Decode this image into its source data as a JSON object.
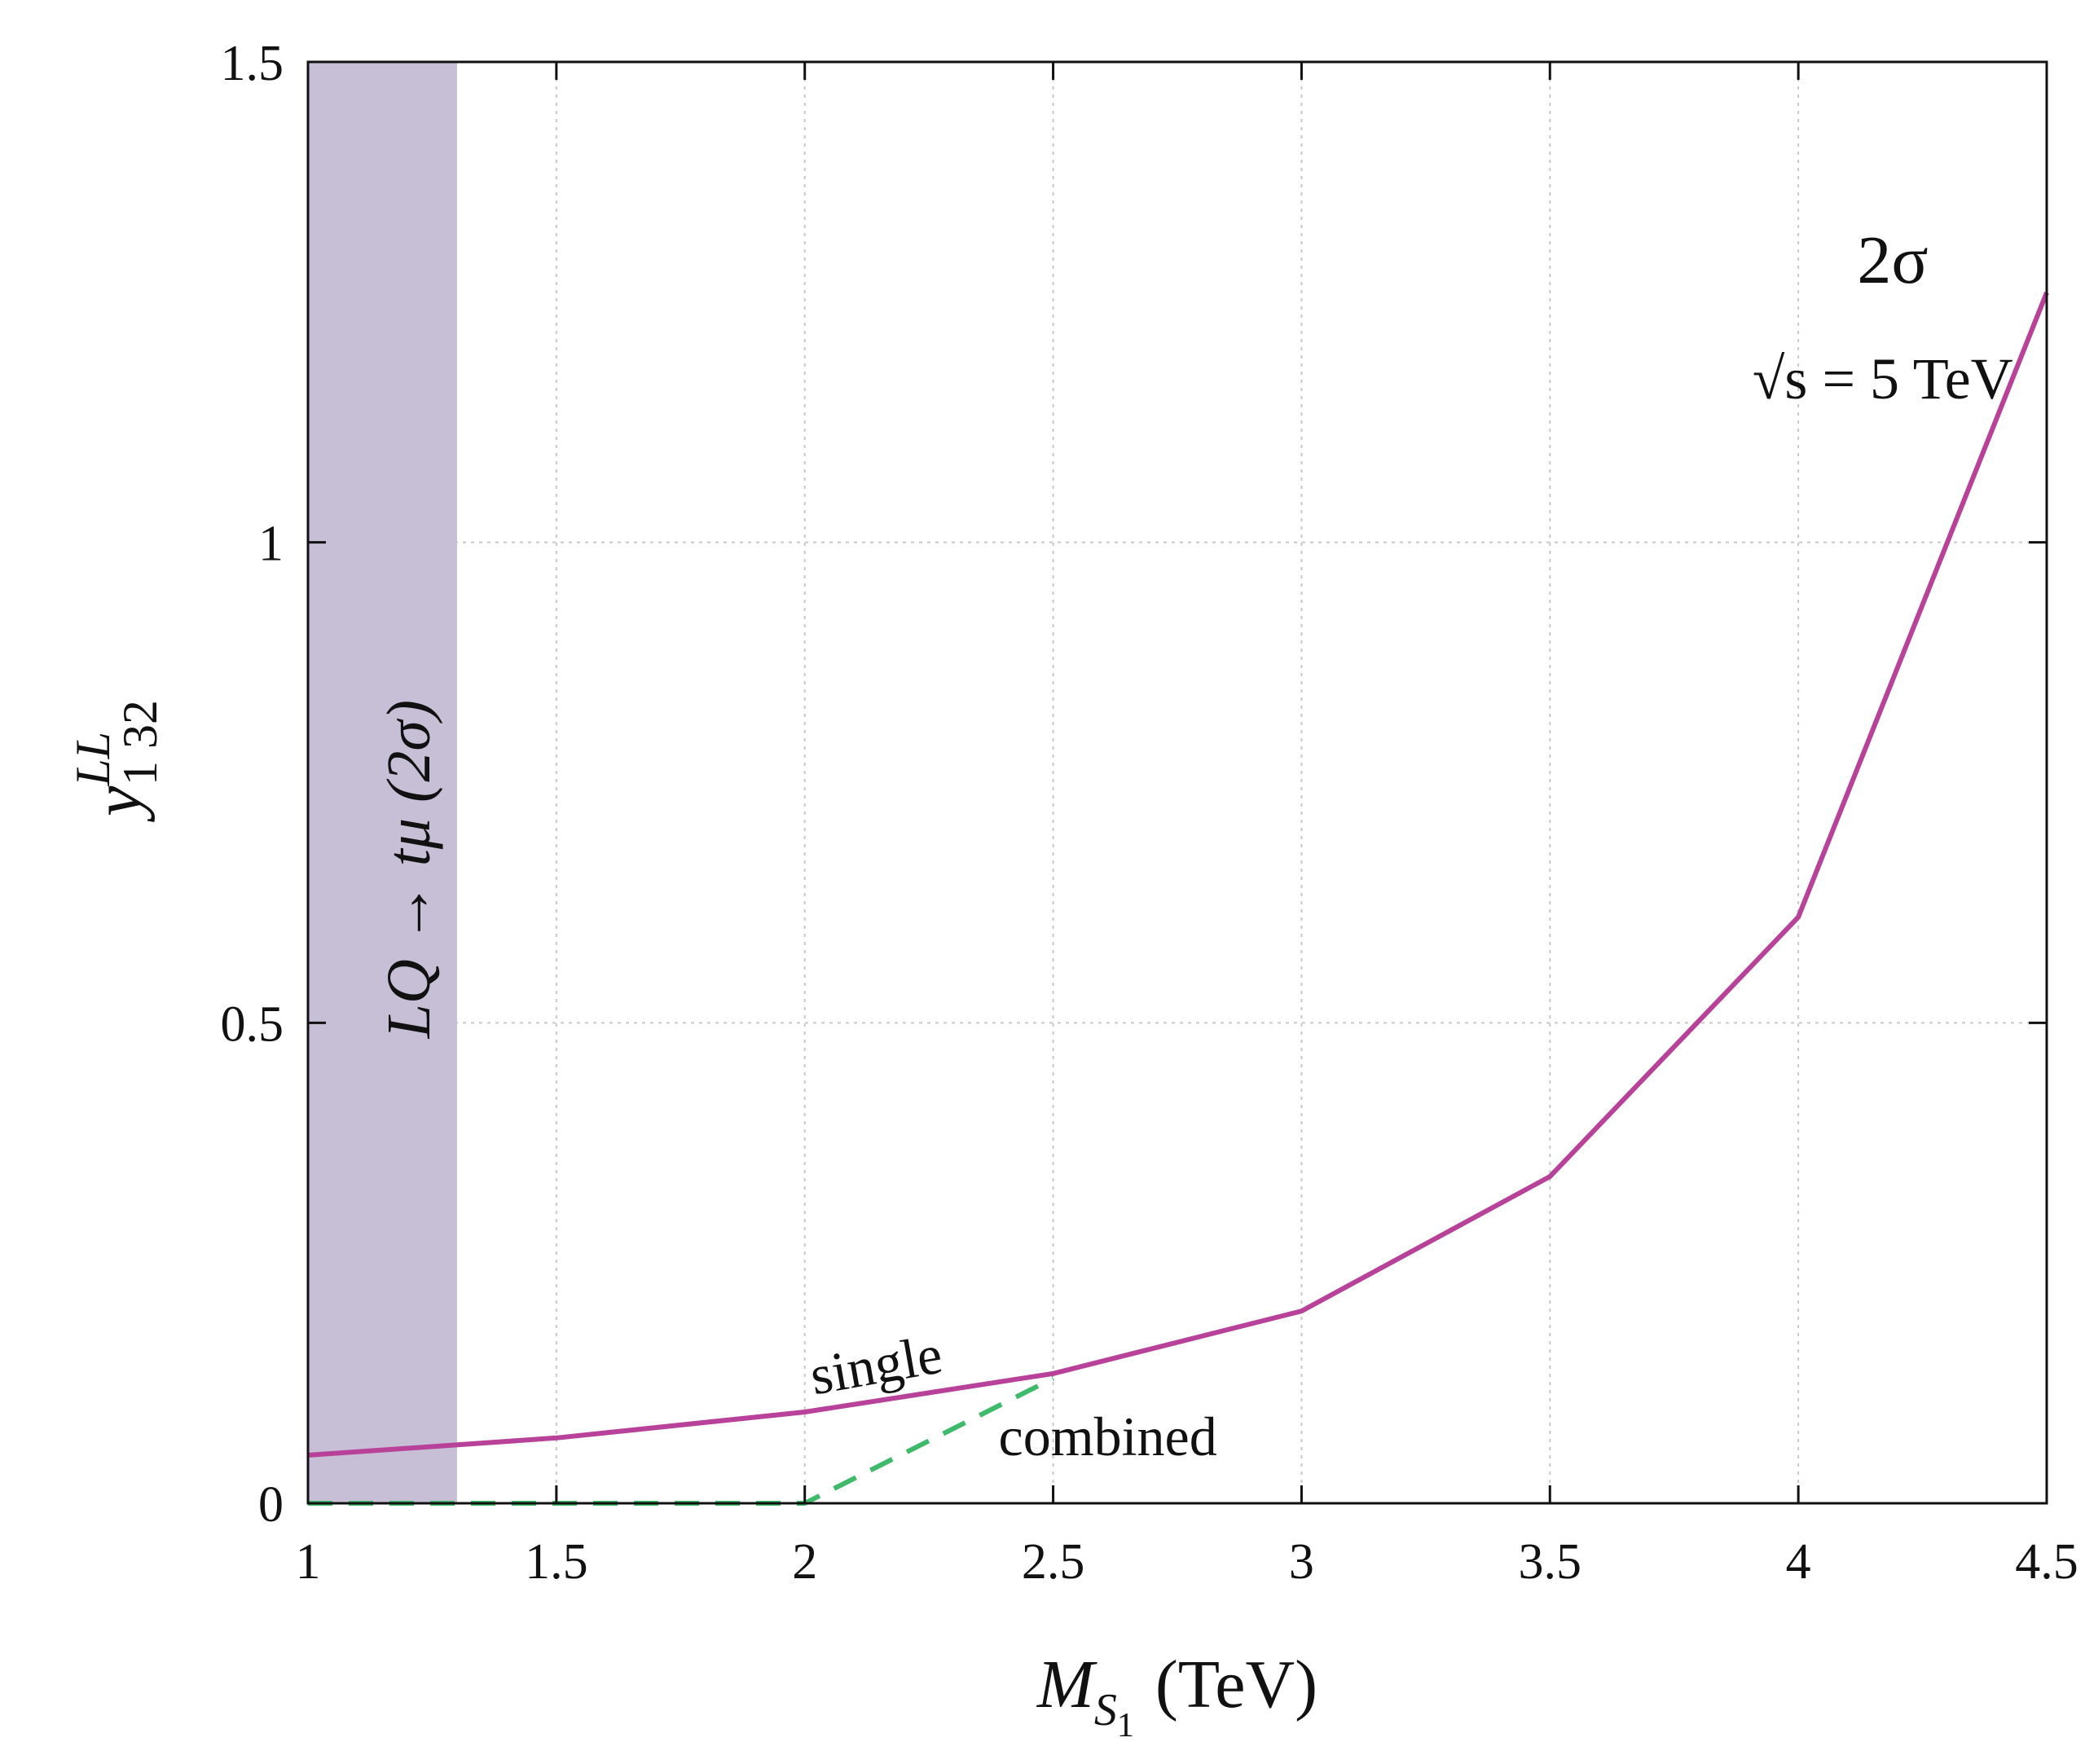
{
  "chart_data": {
    "type": "line",
    "xlabel": "M_{S_1} (TeV)",
    "xlabel_parts": {
      "main": "M",
      "sub": "S",
      "subsub": "1",
      "unit": "(TeV)"
    },
    "ylabel": "y^{LL}_{1 32}",
    "ylabel_parts": {
      "base": "y",
      "sup": "LL",
      "sub": "1 32"
    },
    "xlim": [
      1,
      4.5
    ],
    "ylim": [
      0,
      1.5
    ],
    "xticks": [
      1,
      1.5,
      2,
      2.5,
      3,
      3.5,
      4,
      4.5
    ],
    "xtick_labels": [
      "1",
      "1.5",
      "2",
      "2.5",
      "3",
      "3.5",
      "4",
      "4.5"
    ],
    "yticks": [
      0,
      0.5,
      1,
      1.5
    ],
    "ytick_labels": [
      "0",
      "0.5",
      "1",
      "1.5"
    ],
    "grid": true,
    "series": [
      {
        "name": "single",
        "style": "solid",
        "color": "#b8419a",
        "x": [
          1,
          1.5,
          2,
          2.5,
          3,
          3.5,
          4,
          4.5
        ],
        "y": [
          0.05,
          0.068,
          0.095,
          0.135,
          0.2,
          0.34,
          0.61,
          1.26
        ]
      },
      {
        "name": "combined",
        "style": "dashed",
        "color": "#3fba6b",
        "x": [
          1,
          1.5,
          2,
          2.5
        ],
        "y": [
          0,
          0,
          0,
          0.13
        ]
      }
    ],
    "band": {
      "label": "LQ → tμ (2σ)",
      "x_range": [
        1,
        1.3
      ],
      "color": "#c7bfd6"
    },
    "annotations": {
      "significance": "2σ",
      "energy_prefix": "√s",
      "energy_rest": "= 5 TeV"
    }
  }
}
